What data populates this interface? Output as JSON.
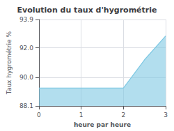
{
  "chart_data": {
    "type": "area",
    "title": "Evolution du taux d'hygrométrie",
    "xlabel": "heure par heure",
    "ylabel": "Taux hygrométrie %",
    "x": [
      0,
      1,
      2,
      2.5,
      3
    ],
    "values": [
      89.3,
      89.3,
      89.3,
      91.2,
      92.8
    ],
    "color": "#7ec8e3",
    "xlim": [
      0,
      3
    ],
    "xticks": [
      0,
      1,
      2,
      3
    ],
    "ylim": [
      88.1,
      93.9
    ],
    "yticks": [
      88.1,
      {
        "value": 90.0,
        "label": "90.0"
      },
      {
        "value": 92,
        "label": "92.0"
      },
      93.9
    ],
    "grid": true
  }
}
